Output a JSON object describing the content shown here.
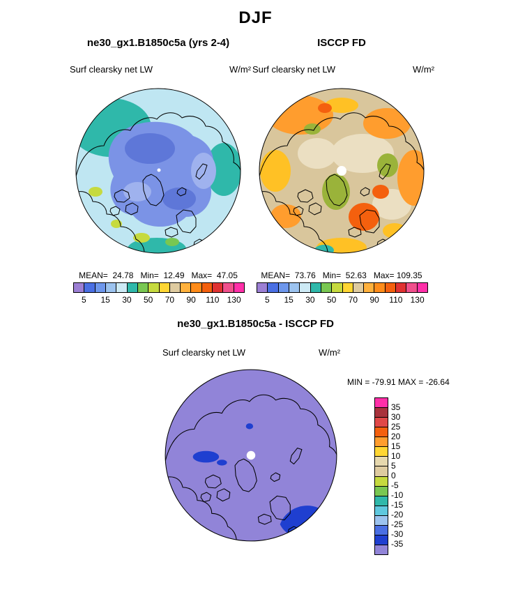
{
  "page_title": "DJF",
  "panels": {
    "model": {
      "header": "ne30_gx1.B1850c5a (yrs 2-4)",
      "var_label": "Surf clearsky net LW",
      "units": "W/m²",
      "stats": "MEAN=  24.78   Min=  12.49   Max=  47.05"
    },
    "obs": {
      "header": "ISCCP FD",
      "var_label": "Surf clearsky net LW",
      "units": "W/m²",
      "stats": "MEAN=  73.76   Min=  52.63   Max= 109.35"
    },
    "diff": {
      "header": "ne30_gx1.B1850c5a - ISCCP FD",
      "var_label": "Surf clearsky net LW",
      "units": "W/m²",
      "minmax": "MIN = -79.91 MAX = -26.64"
    }
  },
  "colorbar": {
    "tick_labels": [
      "5",
      "15",
      "30",
      "50",
      "70",
      "90",
      "110",
      "130"
    ],
    "colors": [
      "#9c7fd4",
      "#4a6fe3",
      "#6e97ec",
      "#9cc3ef",
      "#cdeaf5",
      "#2fb8aa",
      "#79c752",
      "#c6da3f",
      "#ffd633",
      "#decba0",
      "#ffb13d",
      "#ff8c1a",
      "#f4600e",
      "#e03232",
      "#f0508c",
      "#ff2fa8"
    ]
  },
  "diff_colorbar": {
    "labels": [
      "35",
      "30",
      "25",
      "20",
      "15",
      "10",
      "5",
      "0",
      "-5",
      "-10",
      "-15",
      "-20",
      "-25",
      "-30",
      "-35"
    ],
    "colors": [
      "#ff2fa8",
      "#a8323c",
      "#e04848",
      "#f4600e",
      "#ff9d2e",
      "#ffd633",
      "#e6d8ae",
      "#decba0",
      "#c6da3f",
      "#79c752",
      "#2fb8aa",
      "#5fc8de",
      "#9cc3ef",
      "#4a6fe3",
      "#1f3fd0",
      "#9184d8"
    ]
  },
  "map_colors": {
    "model_base": "#bfe6f2",
    "obs_base": "#d9c69c",
    "diff_base": "#9184d8",
    "diff_anomaly": "#1f3fd0"
  },
  "chart_data": [
    {
      "type": "heatmap",
      "title": "ne30_gx1.B1850c5a (yrs 2-4)",
      "variable": "Surf clearsky net LW",
      "season": "DJF",
      "units": "W/m²",
      "projection": "north-polar-stereographic",
      "stats": {
        "mean": 24.78,
        "min": 12.49,
        "max": 47.05
      },
      "colorbar_ticks": [
        5,
        15,
        30,
        50,
        70,
        90,
        110,
        130
      ],
      "legend_position": "below"
    },
    {
      "type": "heatmap",
      "title": "ISCCP FD",
      "variable": "Surf clearsky net LW",
      "season": "DJF",
      "units": "W/m²",
      "projection": "north-polar-stereographic",
      "stats": {
        "mean": 73.76,
        "min": 52.63,
        "max": 109.35
      },
      "colorbar_ticks": [
        5,
        15,
        30,
        50,
        70,
        90,
        110,
        130
      ],
      "legend_position": "below"
    },
    {
      "type": "heatmap",
      "title": "ne30_gx1.B1850c5a - ISCCP FD",
      "variable": "Surf clearsky net LW",
      "season": "DJF",
      "units": "W/m²",
      "projection": "north-polar-stereographic",
      "stats": {
        "min": -79.91,
        "max": -26.64
      },
      "colorbar_ticks": [
        35,
        30,
        25,
        20,
        15,
        10,
        5,
        0,
        -5,
        -10,
        -15,
        -20,
        -25,
        -30,
        -35
      ],
      "legend_position": "right"
    }
  ]
}
